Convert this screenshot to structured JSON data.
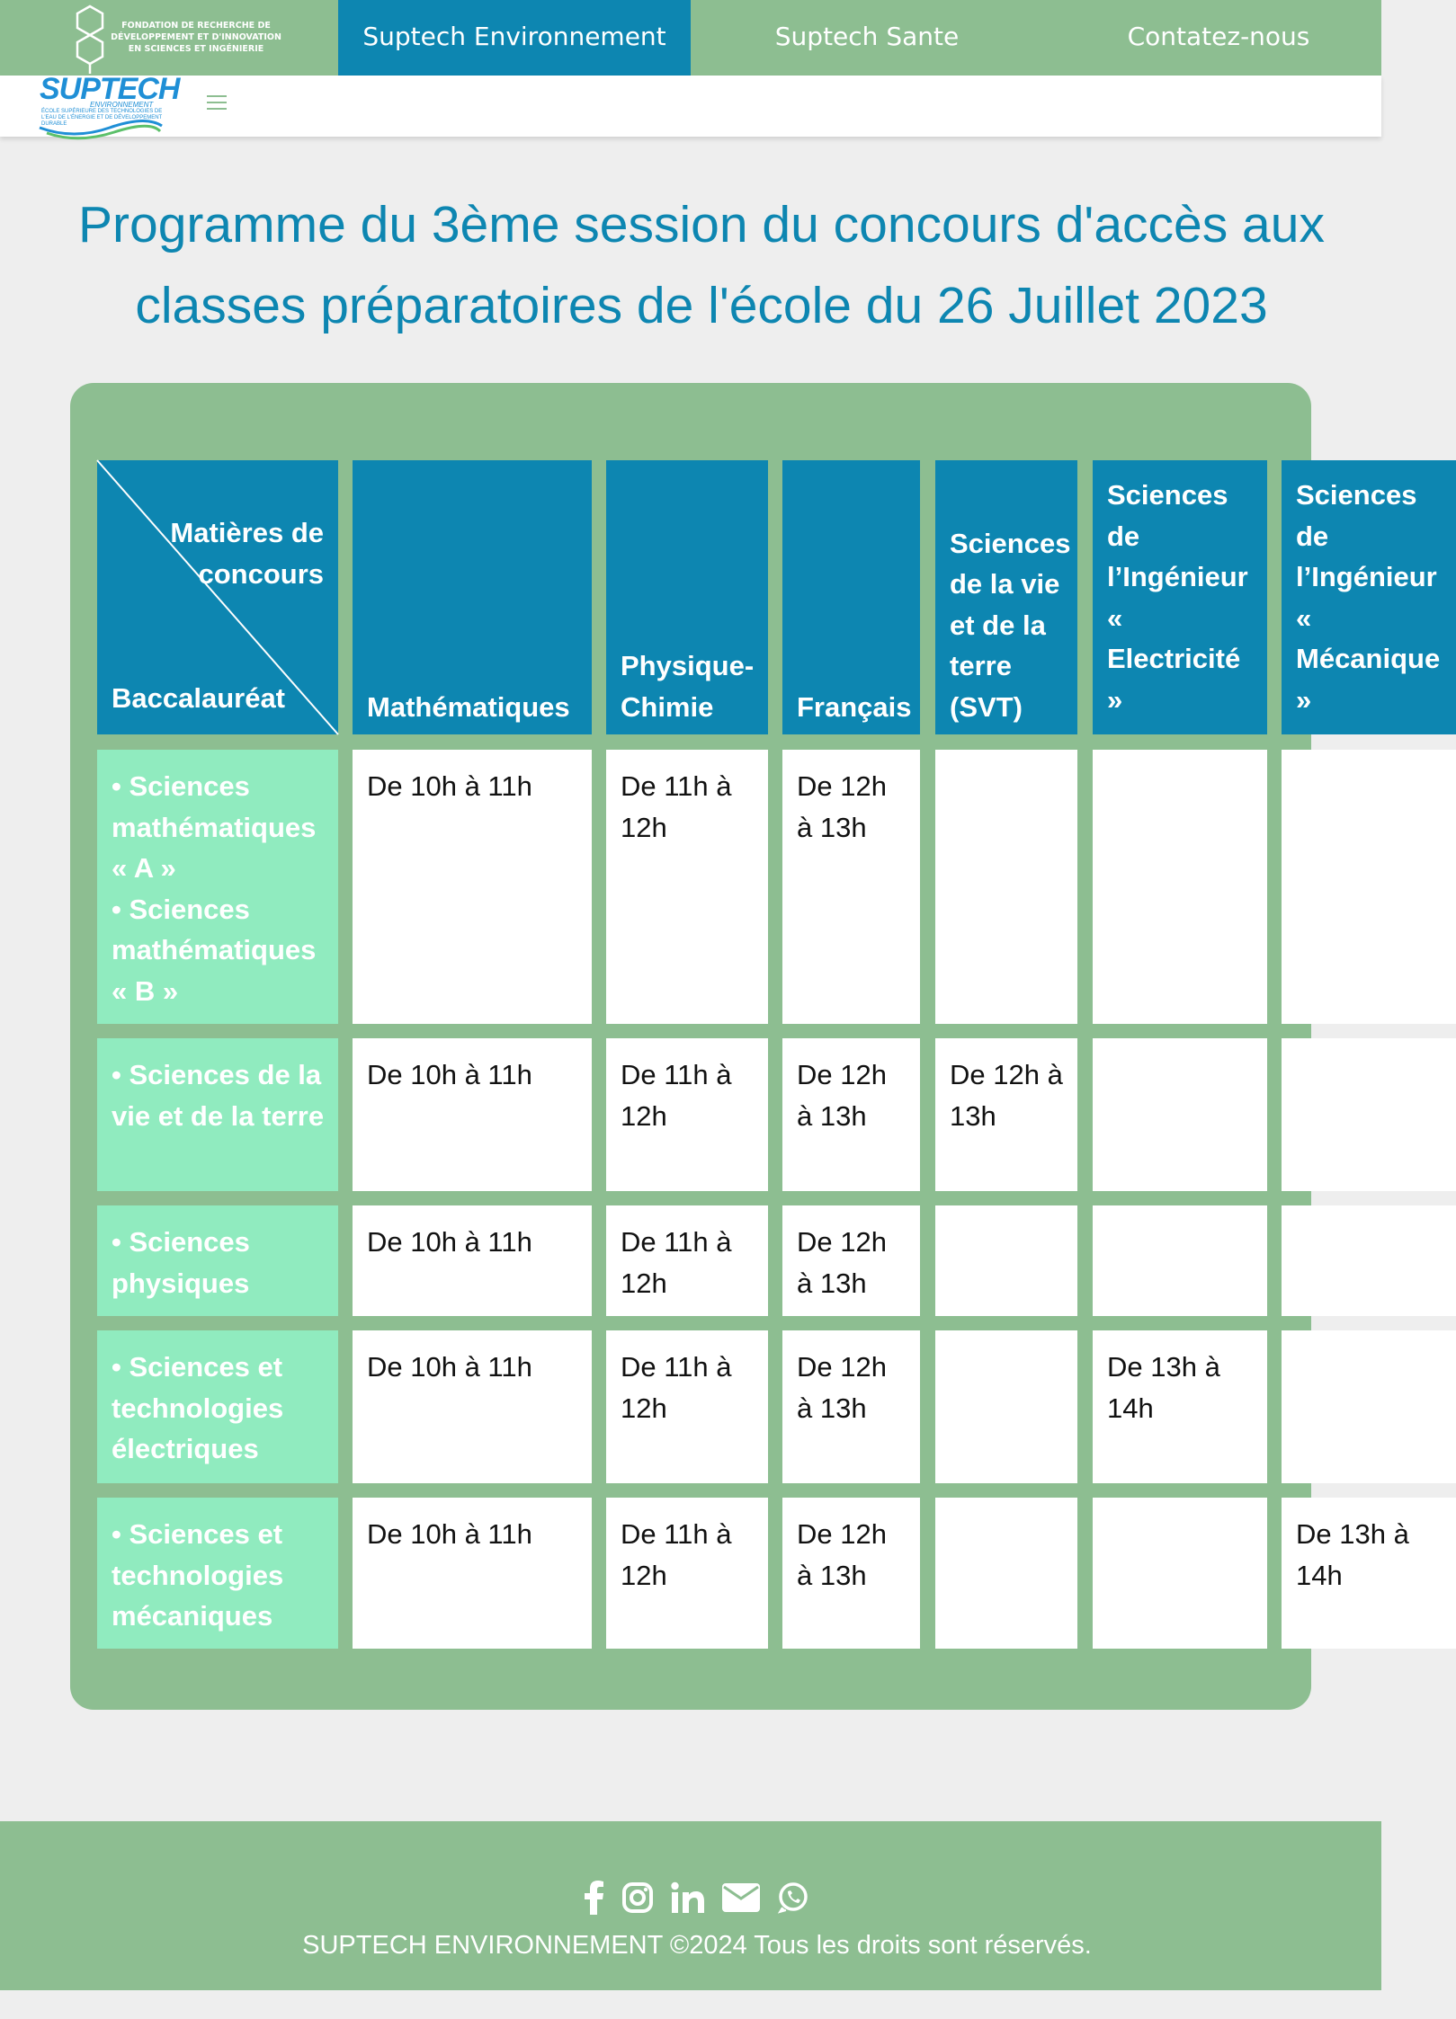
{
  "brand": {
    "foundation_text": "FONDATION DE RECHERCHE DE DÉVELOPPEMENT ET D'INNOVATION EN SCIENCES ET INGÉNIERIE",
    "logo_name": "SUPTECH",
    "logo_sub": "ENVIRONNEMENT",
    "logo_tagline": "ÉCOLE SUPÉRIEURE DES TECHNOLOGIES DE L'EAU DE L'ÉNERGIE ET DE DÉVELOPPEMENT DURABLE"
  },
  "nav": {
    "items": [
      {
        "label": "Suptech Environnement",
        "active": true
      },
      {
        "label": "Suptech Sante",
        "active": false
      },
      {
        "label": "Contatez-nous",
        "active": false
      }
    ]
  },
  "page": {
    "title": "Programme du 3ème session du concours d'accès aux classes préparatoires de l'école du 26 Juillet 2023"
  },
  "table": {
    "corner_top": "Matières de concours",
    "corner_bottom": "Baccalauréat",
    "columns": [
      "Mathématiques",
      "Physique-Chimie",
      "Français",
      "Sciences de la vie et de la terre (SVT)",
      "Sciences de l’Ingénieur « Electricité »",
      "Sciences de l’Ingénieur « Mécanique »"
    ],
    "rows": [
      {
        "header": [
          "• Sciences mathématiques « A »",
          "• Sciences mathématiques « B »"
        ],
        "cells": [
          "De 10h à 11h",
          "De 11h à 12h",
          "De 12h à 13h",
          "",
          "",
          ""
        ]
      },
      {
        "header": [
          "• Sciences de la vie et de la terre"
        ],
        "cells": [
          "De 10h à 11h",
          "De 11h à 12h",
          "De 12h à 13h",
          "De 12h à 13h",
          "",
          ""
        ]
      },
      {
        "header": [
          "• Sciences physiques"
        ],
        "cells": [
          "De 10h à 11h",
          "De 11h à 12h",
          "De 12h à 13h",
          "",
          "",
          ""
        ]
      },
      {
        "header": [
          "• Sciences et technologies électriques"
        ],
        "cells": [
          "De 10h à 11h",
          "De 11h à 12h",
          "De 12h à 13h",
          "",
          "De 13h à 14h",
          ""
        ]
      },
      {
        "header": [
          "• Sciences et technologies mécaniques"
        ],
        "cells": [
          "De 10h à 11h",
          "De 11h à 12h",
          "De 12h à 13h",
          "",
          "",
          "De 13h à 14h"
        ]
      }
    ]
  },
  "footer": {
    "icons": [
      "facebook-icon",
      "instagram-icon",
      "linkedin-icon",
      "envelope-icon",
      "whatsapp-icon"
    ],
    "copyright": "SUPTECH ENVIRONNEMENT ©2024 Tous les droits sont réservés."
  },
  "colors": {
    "nav_green": "#8dbe91",
    "accent_blue": "#0d86b1",
    "row_header_green": "#90ebbf",
    "background": "#eeeeee"
  }
}
